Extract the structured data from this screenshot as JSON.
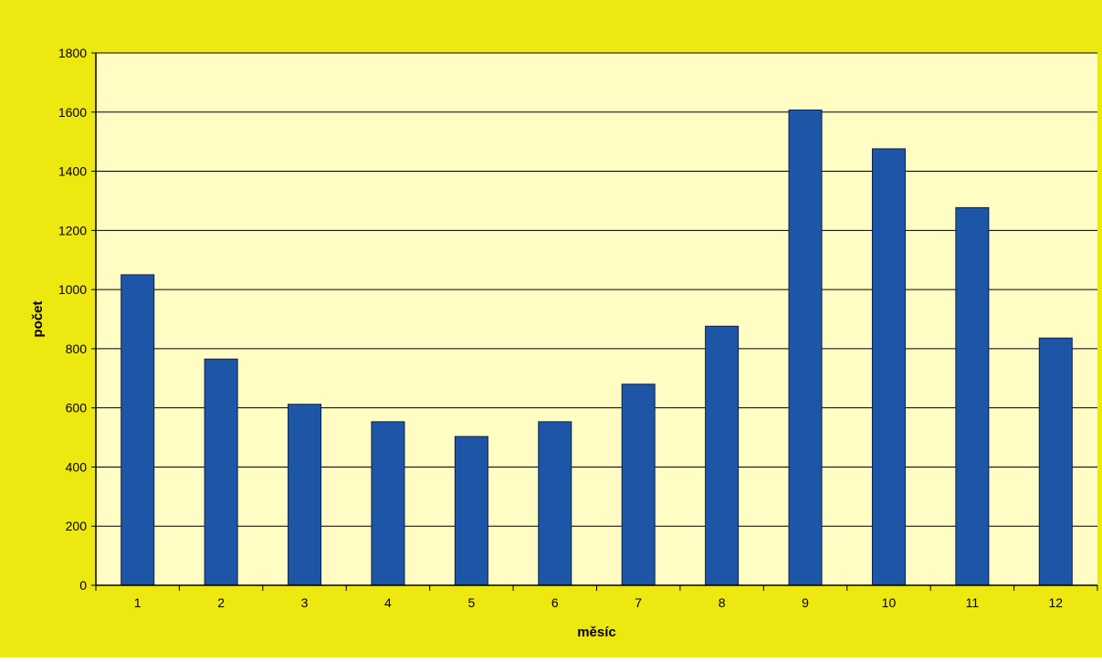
{
  "colors": {
    "background": "#eee811",
    "plot_area": "#fffcc4",
    "bar": "#1e56a7",
    "bar_edge": "#0a1f4a",
    "gridline": "#000000",
    "text": "#000000"
  },
  "chart_data": {
    "type": "bar",
    "title": "",
    "xlabel": "měsíc",
    "ylabel": "počet",
    "categories": [
      "1",
      "2",
      "3",
      "4",
      "5",
      "6",
      "7",
      "8",
      "9",
      "10",
      "11",
      "12"
    ],
    "values": [
      1050,
      765,
      612,
      553,
      503,
      553,
      680,
      876,
      1607,
      1476,
      1277,
      836
    ],
    "ylim": [
      0,
      1800
    ],
    "yticks": [
      "0",
      "200",
      "400",
      "600",
      "800",
      "1000",
      "1200",
      "1400",
      "1600",
      "1800"
    ],
    "grid": true,
    "legend": "none"
  }
}
